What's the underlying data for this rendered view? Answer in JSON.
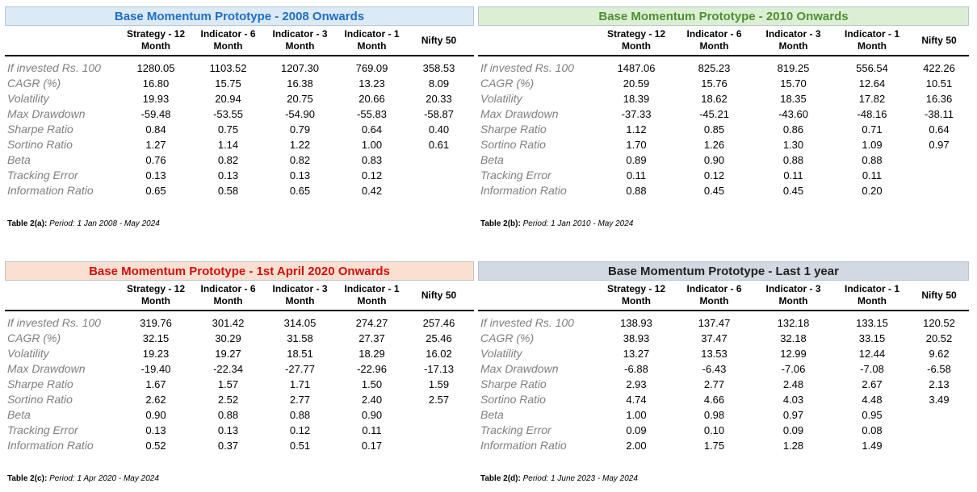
{
  "colors": {
    "panel_a_banner_bg": "#dce9f6",
    "panel_a_title": "#1f6fbf",
    "panel_b_banner_bg": "#dcefd4",
    "panel_b_title": "#4e8f35",
    "panel_c_banner_bg": "#fbe0d2",
    "panel_c_title": "#cc1111",
    "panel_d_banner_bg": "#d3d9e2",
    "panel_d_title": "#222222"
  },
  "columns": [
    "Strategy - 12 Month",
    "Indicator - 6 Month",
    "Indicator - 3 Month",
    "Indicator - 1 Month",
    "Nifty 50"
  ],
  "metrics": [
    "If invested Rs. 100",
    "CAGR (%)",
    "Volatility",
    "Max Drawdown",
    "Sharpe Ratio",
    "Sortino Ratio",
    "Beta",
    "Tracking Error",
    "Information Ratio"
  ],
  "panels": [
    {
      "title": "Base Momentum Prototype - 2008 Onwards",
      "caption_label": "Table 2(a):",
      "caption_text": "Period: 1 Jan 2008 -  May 2024",
      "rows": [
        [
          "1280.05",
          "1103.52",
          "1207.30",
          "769.09",
          "358.53"
        ],
        [
          "16.80",
          "15.75",
          "16.38",
          "13.23",
          "8.09"
        ],
        [
          "19.93",
          "20.94",
          "20.75",
          "20.66",
          "20.33"
        ],
        [
          "-59.48",
          "-53.55",
          "-54.90",
          "-55.83",
          "-58.87"
        ],
        [
          "0.84",
          "0.75",
          "0.79",
          "0.64",
          "0.40"
        ],
        [
          "1.27",
          "1.14",
          "1.22",
          "1.00",
          "0.61"
        ],
        [
          "0.76",
          "0.82",
          "0.82",
          "0.83",
          ""
        ],
        [
          "0.13",
          "0.13",
          "0.13",
          "0.12",
          ""
        ],
        [
          "0.65",
          "0.58",
          "0.65",
          "0.42",
          ""
        ]
      ]
    },
    {
      "title": "Base Momentum Prototype - 2010 Onwards",
      "caption_label": "Table 2(b):",
      "caption_text": "Period: 1 Jan 2010 -  May 2024",
      "rows": [
        [
          "1487.06",
          "825.23",
          "819.25",
          "556.54",
          "422.26"
        ],
        [
          "20.59",
          "15.76",
          "15.70",
          "12.64",
          "10.51"
        ],
        [
          "18.39",
          "18.62",
          "18.35",
          "17.82",
          "16.36"
        ],
        [
          "-37.33",
          "-45.21",
          "-43.60",
          "-48.16",
          "-38.11"
        ],
        [
          "1.12",
          "0.85",
          "0.86",
          "0.71",
          "0.64"
        ],
        [
          "1.70",
          "1.26",
          "1.30",
          "1.09",
          "0.97"
        ],
        [
          "0.89",
          "0.90",
          "0.88",
          "0.88",
          ""
        ],
        [
          "0.11",
          "0.12",
          "0.11",
          "0.11",
          ""
        ],
        [
          "0.88",
          "0.45",
          "0.45",
          "0.20",
          ""
        ]
      ]
    },
    {
      "title": "Base Momentum Prototype - 1st April 2020 Onwards",
      "caption_label": "Table 2(c):",
      "caption_text": "Period: 1 Apr 2020 -  May 2024",
      "rows": [
        [
          "319.76",
          "301.42",
          "314.05",
          "274.27",
          "257.46"
        ],
        [
          "32.15",
          "30.29",
          "31.58",
          "27.37",
          "25.46"
        ],
        [
          "19.23",
          "19.27",
          "18.51",
          "18.29",
          "16.02"
        ],
        [
          "-19.40",
          "-22.34",
          "-27.77",
          "-22.96",
          "-17.13"
        ],
        [
          "1.67",
          "1.57",
          "1.71",
          "1.50",
          "1.59"
        ],
        [
          "2.62",
          "2.52",
          "2.77",
          "2.40",
          "2.57"
        ],
        [
          "0.90",
          "0.88",
          "0.88",
          "0.90",
          ""
        ],
        [
          "0.13",
          "0.13",
          "0.12",
          "0.11",
          ""
        ],
        [
          "0.52",
          "0.37",
          "0.51",
          "0.17",
          ""
        ]
      ]
    },
    {
      "title": "Base Momentum Prototype -  Last 1 year",
      "caption_label": "Table 2(d):",
      "caption_text": "Period: 1 June 2023 -  May 2024",
      "rows": [
        [
          "138.93",
          "137.47",
          "132.18",
          "133.15",
          "120.52"
        ],
        [
          "38.93",
          "37.47",
          "32.18",
          "33.15",
          "20.52"
        ],
        [
          "13.27",
          "13.53",
          "12.99",
          "12.44",
          "9.62"
        ],
        [
          "-6.88",
          "-6.43",
          "-7.06",
          "-7.08",
          "-6.58"
        ],
        [
          "2.93",
          "2.77",
          "2.48",
          "2.67",
          "2.13"
        ],
        [
          "4.74",
          "4.66",
          "4.03",
          "4.48",
          "3.49"
        ],
        [
          "1.00",
          "0.98",
          "0.97",
          "0.95",
          ""
        ],
        [
          "0.09",
          "0.10",
          "0.09",
          "0.08",
          ""
        ],
        [
          "2.00",
          "1.75",
          "1.28",
          "1.49",
          ""
        ]
      ]
    }
  ]
}
